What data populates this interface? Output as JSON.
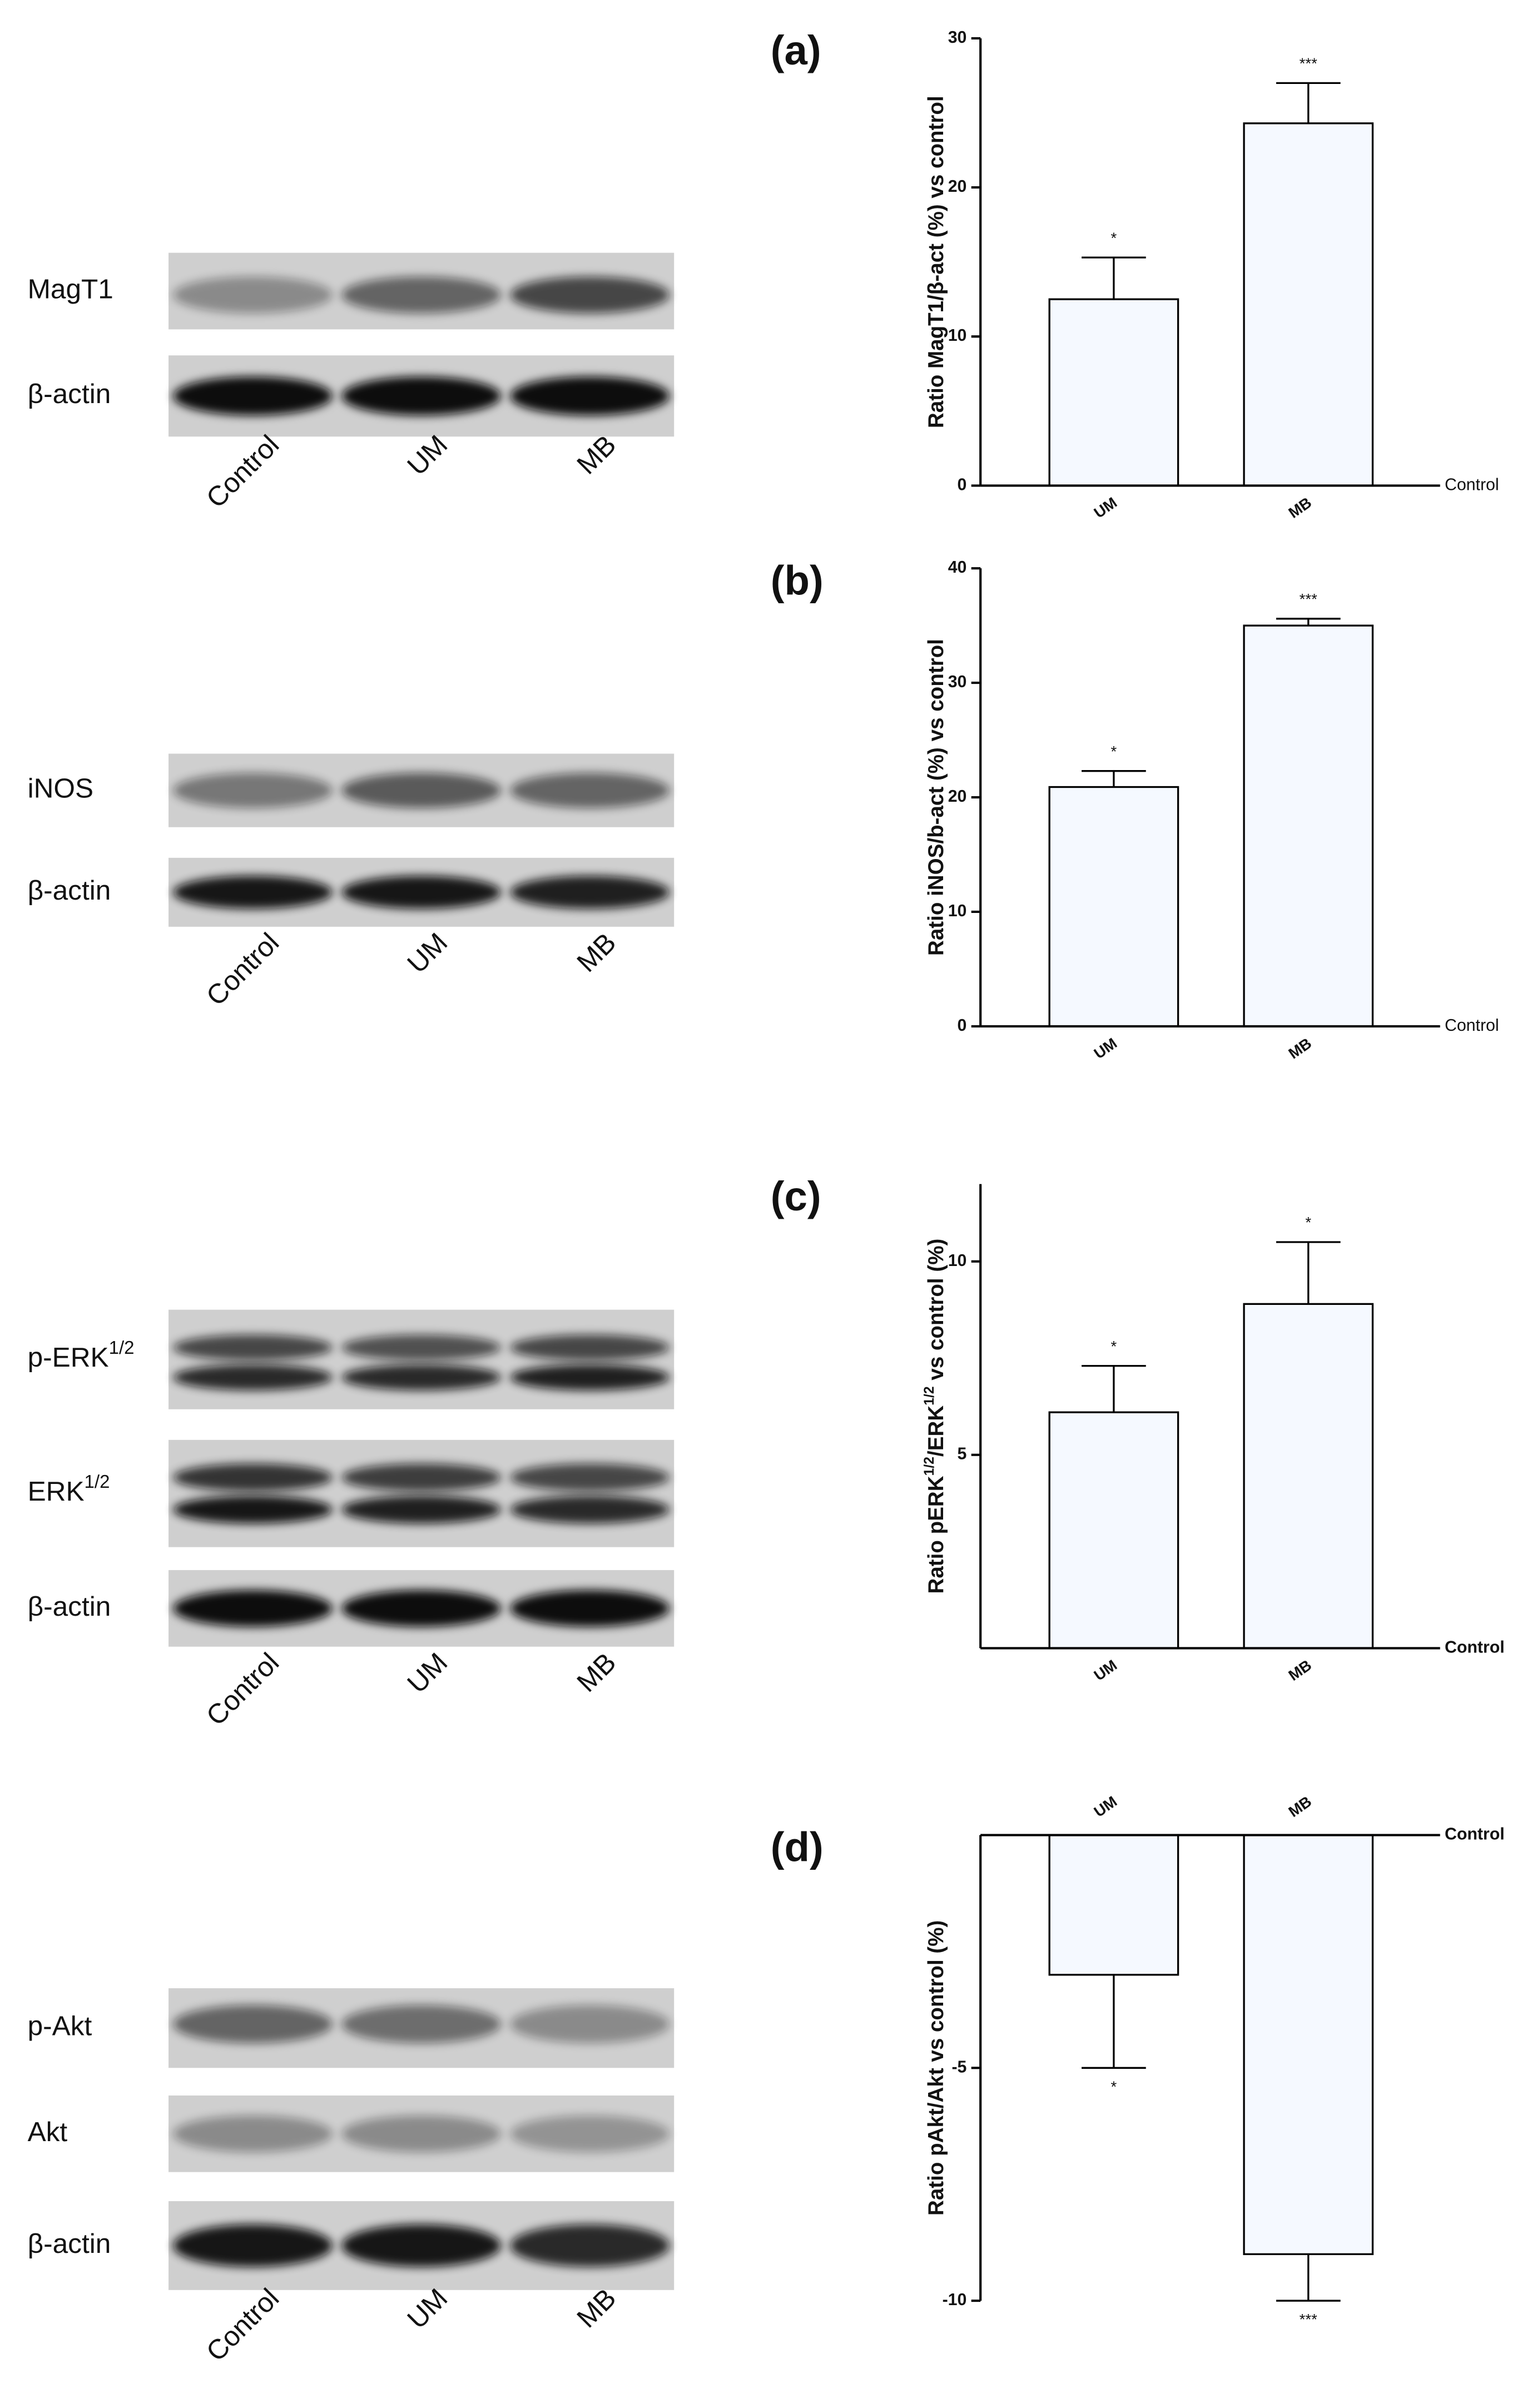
{
  "blots": [
    {
      "rows": [
        {
          "label": "MagT1"
        },
        {
          "label": "β-actin"
        }
      ],
      "lanes": [
        "Control",
        "UM",
        "MB"
      ]
    },
    {
      "rows": [
        {
          "label": "iNOS"
        },
        {
          "label": "β-actin"
        }
      ],
      "lanes": [
        "Control",
        "UM",
        "MB"
      ]
    },
    {
      "rows": [
        {
          "label": "p-ERK",
          "sup": "1/2"
        },
        {
          "label": "ERK",
          "sup": "1/2"
        },
        {
          "label": "β-actin"
        }
      ],
      "lanes": [
        "Control",
        "UM",
        "MB"
      ]
    },
    {
      "rows": [
        {
          "label": "p-Akt"
        },
        {
          "label": "Akt"
        },
        {
          "label": "β-actin"
        }
      ],
      "lanes": [
        "Control",
        "UM",
        "MB"
      ]
    }
  ],
  "chart_data": [
    {
      "type": "bar",
      "title": "(a)",
      "ylabel": "Ratio MagT1/β-act (%) vs control",
      "baseline_label": "Control",
      "categories": [
        "UM",
        "MB"
      ],
      "values": [
        12.5,
        24.3
      ],
      "errors": [
        2.8,
        2.7
      ],
      "significance": [
        "*",
        "***"
      ],
      "color": "#f5f9ff",
      "ylim": [
        0,
        30
      ],
      "yticks": [
        0,
        10,
        20,
        30
      ]
    },
    {
      "type": "bar",
      "title": "(b)",
      "ylabel": "Ratio iNOS/b-act (%)  vs control",
      "baseline_label": "Control",
      "categories": [
        "UM",
        "MB"
      ],
      "values": [
        20.9,
        35.0
      ],
      "errors": [
        1.4,
        0.6
      ],
      "significance": [
        "*",
        "***"
      ],
      "color": "#f5f9ff",
      "ylim": [
        0,
        40
      ],
      "yticks": [
        0,
        10,
        20,
        30,
        40
      ]
    },
    {
      "type": "bar",
      "title": "(c)",
      "ylabel": [
        {
          "text": "Ratio pERK"
        },
        {
          "text": "1/2",
          "sup": true
        },
        {
          "text": "/ERK"
        },
        {
          "text": "1/2",
          "sup": true
        },
        {
          "text": " vs control (%)"
        }
      ],
      "baseline_label": "Control",
      "categories": [
        "UM",
        "MB"
      ],
      "values": [
        6.1,
        8.9
      ],
      "errors": [
        1.2,
        1.6
      ],
      "significance": [
        "*",
        "*"
      ],
      "color": "#f5f9ff",
      "ylim": [
        0,
        12
      ],
      "yticks": [
        5,
        10
      ]
    },
    {
      "type": "bar",
      "title": "(d)",
      "ylabel": "Ratio pAkt/Akt vs control (%)",
      "baseline_label": "Control",
      "categories": [
        "UM",
        "MB"
      ],
      "values": [
        -3.0,
        -9.0
      ],
      "errors": [
        2.0,
        1.0
      ],
      "significance": [
        "*",
        "***"
      ],
      "color": "#f5f9ff",
      "ylim": [
        -10,
        0
      ],
      "yticks": [
        -5,
        -10
      ]
    }
  ]
}
